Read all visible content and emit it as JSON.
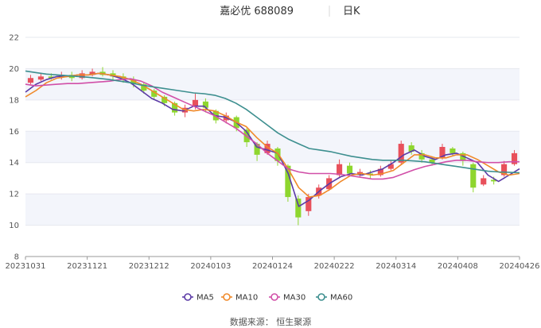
{
  "chart_data": {
    "type": "candlestick",
    "title": "嘉必优 688089",
    "subtitle": "日K",
    "ylim": [
      8,
      22
    ],
    "y_ticks": [
      "8",
      "10",
      "12",
      "14",
      "16",
      "18",
      "20",
      "22"
    ],
    "x_ticks": [
      "20231031",
      "20231121",
      "20231212",
      "20240103",
      "20240124",
      "20240222",
      "20240314",
      "20240408",
      "20240426"
    ],
    "grid": true,
    "legend_position": "bottom-center",
    "source": "数据来源：  恒生聚源",
    "series": [
      {
        "name": "MA5",
        "color": "#5b3aa6",
        "values": [
          18.5,
          19.0,
          19.3,
          19.5,
          19.5,
          19.6,
          19.6,
          19.7,
          19.6,
          19.4,
          19.1,
          18.6,
          18.1,
          17.8,
          17.4,
          17.3,
          17.6,
          17.6,
          17.0,
          16.9,
          16.6,
          16.0,
          15.0,
          14.8,
          14.6,
          13.3,
          11.2,
          11.6,
          12.2,
          12.7,
          13.1,
          13.3,
          13.2,
          13.4,
          13.6,
          14.0,
          14.5,
          14.8,
          14.4,
          14.2,
          14.5,
          14.6,
          14.3,
          14.0,
          13.2,
          12.8,
          13.2,
          13.6
        ]
      },
      {
        "name": "MA10",
        "color": "#f08a2b",
        "values": [
          18.2,
          18.6,
          19.1,
          19.4,
          19.5,
          19.6,
          19.6,
          19.7,
          19.6,
          19.5,
          19.3,
          19.0,
          18.6,
          18.2,
          17.8,
          17.4,
          17.3,
          17.4,
          17.3,
          17.0,
          16.6,
          16.3,
          15.6,
          15.0,
          14.6,
          13.6,
          12.4,
          11.8,
          11.9,
          12.3,
          12.8,
          13.2,
          13.3,
          13.2,
          13.3,
          13.5,
          14.0,
          14.5,
          14.5,
          14.3,
          14.3,
          14.5,
          14.5,
          14.2,
          13.8,
          13.4,
          13.2,
          13.3
        ]
      },
      {
        "name": "MA30",
        "color": "#d14fa8",
        "values": [
          19.0,
          18.9,
          18.95,
          19.0,
          19.05,
          19.05,
          19.1,
          19.15,
          19.2,
          19.3,
          19.35,
          19.2,
          18.9,
          18.5,
          18.2,
          17.9,
          17.6,
          17.3,
          17.0,
          16.6,
          16.2,
          15.7,
          15.2,
          14.6,
          14.1,
          13.6,
          13.4,
          13.3,
          13.3,
          13.3,
          13.25,
          13.15,
          13.05,
          12.95,
          12.95,
          13.05,
          13.3,
          13.55,
          13.75,
          13.9,
          14.05,
          14.15,
          14.15,
          14.05,
          14.0,
          14.0,
          14.05,
          14.05
        ]
      },
      {
        "name": "MA60",
        "color": "#3d8f8f",
        "values": [
          19.85,
          19.75,
          19.65,
          19.6,
          19.55,
          19.5,
          19.45,
          19.38,
          19.3,
          19.2,
          19.1,
          18.95,
          18.85,
          18.75,
          18.65,
          18.55,
          18.45,
          18.4,
          18.3,
          18.1,
          17.8,
          17.4,
          16.9,
          16.4,
          15.9,
          15.5,
          15.2,
          14.9,
          14.8,
          14.7,
          14.55,
          14.4,
          14.3,
          14.2,
          14.15,
          14.15,
          14.15,
          14.1,
          14.05,
          13.95,
          13.85,
          13.75,
          13.65,
          13.55,
          13.45,
          13.4,
          13.38,
          13.35
        ]
      }
    ],
    "candles": [
      {
        "o": 19.1,
        "c": 19.4,
        "h": 19.6,
        "l": 19.0
      },
      {
        "o": 19.3,
        "c": 19.5,
        "h": 19.7,
        "l": 19.2
      },
      {
        "o": 19.5,
        "c": 19.4,
        "h": 19.7,
        "l": 19.3
      },
      {
        "o": 19.5,
        "c": 19.6,
        "h": 19.8,
        "l": 19.3
      },
      {
        "o": 19.6,
        "c": 19.4,
        "h": 19.8,
        "l": 19.2
      },
      {
        "o": 19.4,
        "c": 19.7,
        "h": 19.9,
        "l": 19.3
      },
      {
        "o": 19.6,
        "c": 19.8,
        "h": 20.0,
        "l": 19.5
      },
      {
        "o": 19.8,
        "c": 19.6,
        "h": 20.1,
        "l": 19.5
      },
      {
        "o": 19.7,
        "c": 19.5,
        "h": 19.9,
        "l": 19.3
      },
      {
        "o": 19.5,
        "c": 19.3,
        "h": 19.7,
        "l": 19.1
      },
      {
        "o": 19.3,
        "c": 19.0,
        "h": 19.5,
        "l": 18.8
      },
      {
        "o": 19.0,
        "c": 18.6,
        "h": 19.1,
        "l": 18.4
      },
      {
        "o": 18.6,
        "c": 18.2,
        "h": 18.7,
        "l": 18.0
      },
      {
        "o": 18.2,
        "c": 17.8,
        "h": 18.3,
        "l": 17.6
      },
      {
        "o": 17.8,
        "c": 17.2,
        "h": 17.9,
        "l": 17.0
      },
      {
        "o": 17.2,
        "c": 17.5,
        "h": 17.7,
        "l": 16.9
      },
      {
        "o": 17.6,
        "c": 18.0,
        "h": 18.4,
        "l": 17.4
      },
      {
        "o": 17.9,
        "c": 17.5,
        "h": 18.1,
        "l": 17.2
      },
      {
        "o": 17.3,
        "c": 16.7,
        "h": 17.4,
        "l": 16.5
      },
      {
        "o": 16.7,
        "c": 17.0,
        "h": 17.2,
        "l": 16.5
      },
      {
        "o": 16.9,
        "c": 16.2,
        "h": 17.0,
        "l": 16.0
      },
      {
        "o": 16.1,
        "c": 15.3,
        "h": 16.2,
        "l": 15.0
      },
      {
        "o": 15.2,
        "c": 14.5,
        "h": 15.3,
        "l": 14.1
      },
      {
        "o": 14.6,
        "c": 15.2,
        "h": 15.4,
        "l": 14.5
      },
      {
        "o": 14.9,
        "c": 14.1,
        "h": 15.0,
        "l": 13.8
      },
      {
        "o": 13.8,
        "c": 11.8,
        "h": 13.9,
        "l": 11.5
      },
      {
        "o": 11.7,
        "c": 10.5,
        "h": 11.9,
        "l": 10.0
      },
      {
        "o": 10.9,
        "c": 11.8,
        "h": 12.0,
        "l": 10.6
      },
      {
        "o": 11.9,
        "c": 12.4,
        "h": 12.6,
        "l": 11.7
      },
      {
        "o": 12.3,
        "c": 13.0,
        "h": 13.2,
        "l": 12.2
      },
      {
        "o": 13.2,
        "c": 13.9,
        "h": 14.2,
        "l": 13.1
      },
      {
        "o": 13.8,
        "c": 13.3,
        "h": 14.0,
        "l": 13.1
      },
      {
        "o": 13.3,
        "c": 13.4,
        "h": 13.6,
        "l": 13.1
      },
      {
        "o": 13.3,
        "c": 13.2,
        "h": 13.5,
        "l": 13.0
      },
      {
        "o": 13.2,
        "c": 13.6,
        "h": 13.8,
        "l": 13.1
      },
      {
        "o": 13.6,
        "c": 13.9,
        "h": 14.1,
        "l": 13.5
      },
      {
        "o": 14.0,
        "c": 15.2,
        "h": 15.4,
        "l": 13.9
      },
      {
        "o": 15.1,
        "c": 14.7,
        "h": 15.3,
        "l": 14.5
      },
      {
        "o": 14.6,
        "c": 14.2,
        "h": 14.8,
        "l": 14.0
      },
      {
        "o": 14.2,
        "c": 14.0,
        "h": 14.4,
        "l": 13.8
      },
      {
        "o": 14.3,
        "c": 15.0,
        "h": 15.2,
        "l": 14.2
      },
      {
        "o": 14.9,
        "c": 14.6,
        "h": 15.0,
        "l": 14.4
      },
      {
        "o": 14.6,
        "c": 14.1,
        "h": 14.7,
        "l": 13.8
      },
      {
        "o": 13.9,
        "c": 12.4,
        "h": 14.0,
        "l": 12.1
      },
      {
        "o": 12.6,
        "c": 13.0,
        "h": 13.2,
        "l": 12.5
      },
      {
        "o": 12.9,
        "c": 12.8,
        "h": 13.1,
        "l": 12.6
      },
      {
        "o": 13.2,
        "c": 13.9,
        "h": 14.1,
        "l": 13.1
      },
      {
        "o": 13.9,
        "c": 14.6,
        "h": 14.8,
        "l": 13.8
      }
    ],
    "up_color": "#e8505b",
    "down_color": "#8ed62e"
  },
  "legend": [
    {
      "label": "MA5",
      "color": "#5b3aa6"
    },
    {
      "label": "MA10",
      "color": "#f08a2b"
    },
    {
      "label": "MA30",
      "color": "#d14fa8"
    },
    {
      "label": "MA60",
      "color": "#3d8f8f"
    }
  ]
}
